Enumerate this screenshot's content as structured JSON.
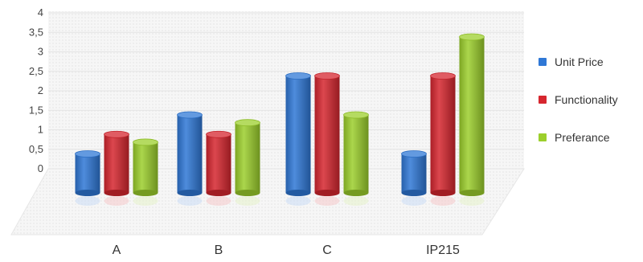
{
  "chart_data": {
    "type": "bar",
    "categories": [
      "A",
      "B",
      "C",
      "IP215"
    ],
    "y_ticks": [
      "0",
      "0,5",
      "1",
      "1,5",
      "2",
      "2,5",
      "3",
      "3,5",
      "4"
    ],
    "ylim": [
      0,
      4
    ],
    "grid": true,
    "legend_position": "right",
    "series": [
      {
        "name": "Unit Price",
        "color": "#2f78d6",
        "values": [
          1,
          2,
          3,
          1
        ]
      },
      {
        "name": "Functionality",
        "color": "#d6262f",
        "values": [
          1.5,
          1.5,
          3,
          3
        ]
      },
      {
        "name": "Preferance",
        "color": "#9ccf2c",
        "values": [
          1.3,
          1.8,
          2,
          4
        ]
      }
    ]
  }
}
